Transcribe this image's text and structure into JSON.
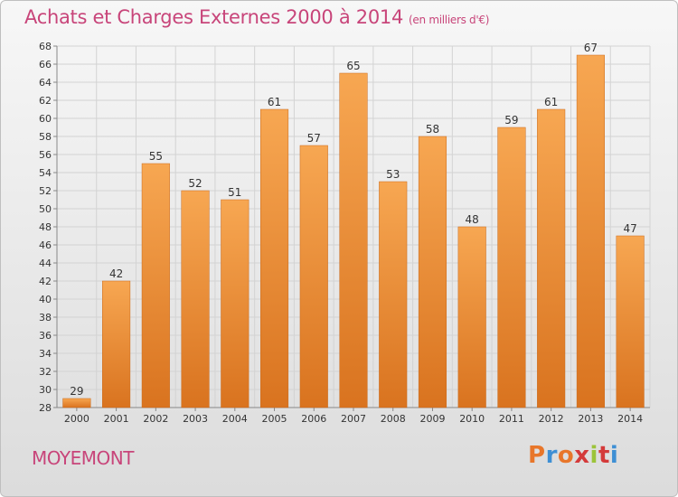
{
  "header": {
    "title": "Achats et Charges Externes 2000 à 2014",
    "unit": "(en milliers d'€)"
  },
  "footer": {
    "place": "MOYEMONT",
    "logo_text": "Proxiti",
    "logo_colors": [
      "#e8762a",
      "#3e8fd4",
      "#e8762a",
      "#d43a3a",
      "#9cc43a",
      "#d43a3a",
      "#3e8fd4"
    ]
  },
  "colors": {
    "title": "#c8457a",
    "bar_light": "#f7a752",
    "bar_dark": "#d9731f",
    "grid": "#d3d3d3",
    "axis": "#888888"
  },
  "chart_data": {
    "type": "bar",
    "title": "Achats et Charges Externes 2000 à 2014",
    "subtitle": "(en milliers d'€)",
    "xlabel": "",
    "ylabel": "",
    "categories": [
      "2000",
      "2001",
      "2002",
      "2003",
      "2004",
      "2005",
      "2006",
      "2007",
      "2008",
      "2009",
      "2010",
      "2011",
      "2012",
      "2013",
      "2014"
    ],
    "values": [
      29,
      42,
      55,
      52,
      51,
      61,
      57,
      65,
      53,
      58,
      48,
      59,
      61,
      67,
      47
    ],
    "ylim": [
      28,
      68
    ],
    "ytick_step": 2,
    "grid": true,
    "legend": "none",
    "data_labels": true
  }
}
